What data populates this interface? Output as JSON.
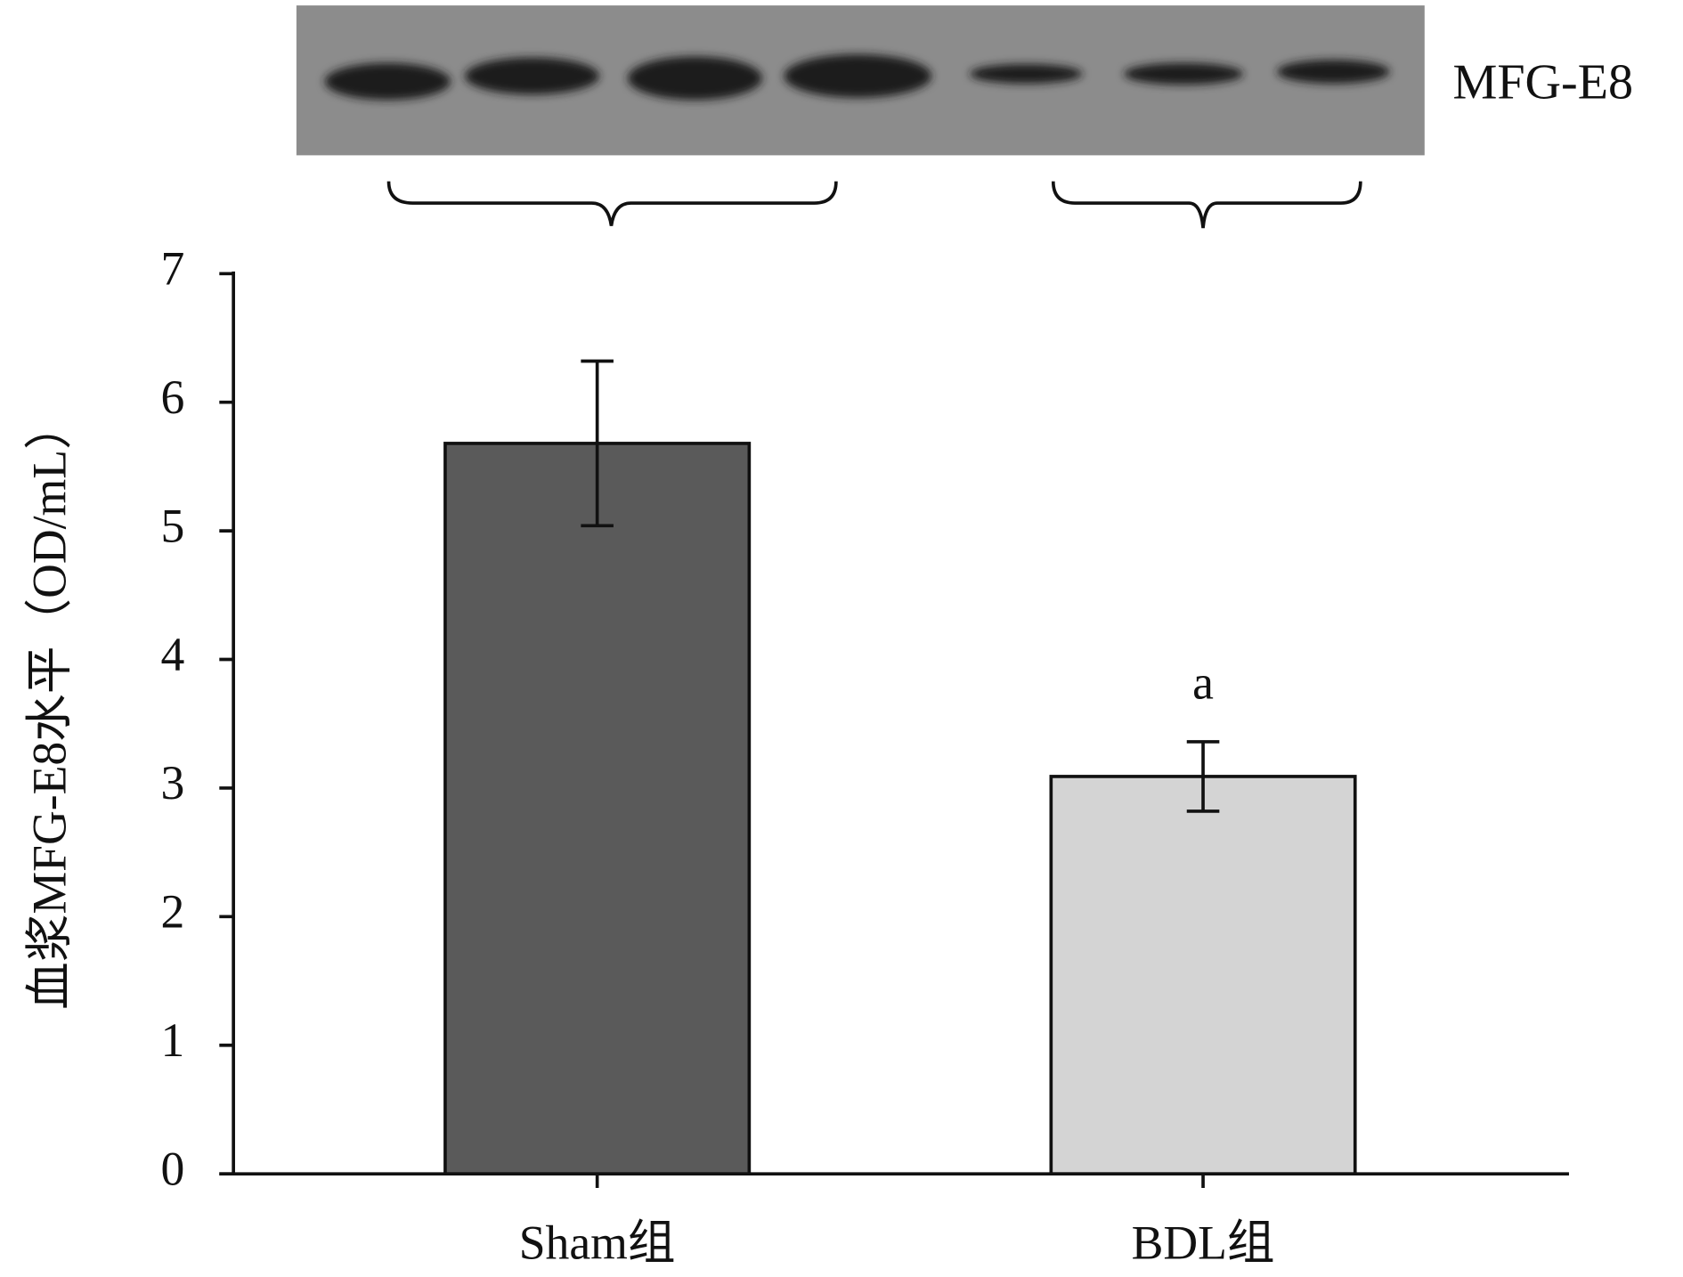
{
  "chart_data": {
    "type": "bar",
    "blot_label": "MFG-E8",
    "y_label": "血浆MFG-E8水平（OD/mL）",
    "categories": [
      "Sham组",
      "BDL组"
    ],
    "values": [
      5.68,
      3.09
    ],
    "errors": [
      0.64,
      0.27
    ],
    "colors": [
      "#5a5a5a",
      "#d4d4d4"
    ],
    "annotations": [
      "",
      "a"
    ],
    "ylim": [
      0,
      7
    ],
    "yticks": [
      0,
      1,
      2,
      3,
      4,
      5,
      6,
      7
    ]
  }
}
